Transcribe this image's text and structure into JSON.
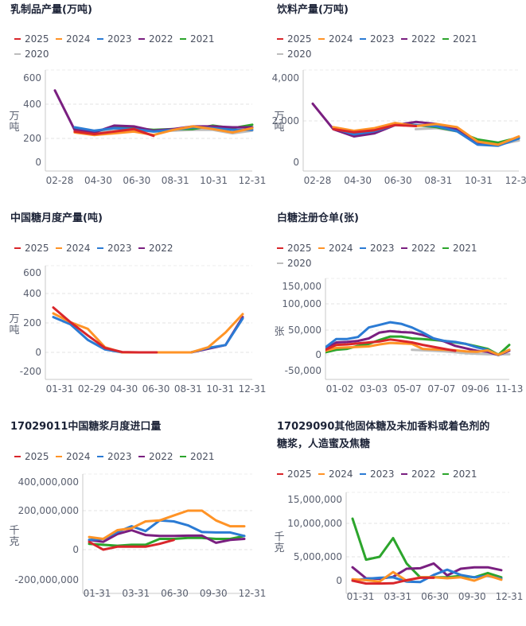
{
  "colors": {
    "2025": "#d9262b",
    "2024": "#ff9326",
    "2023": "#2b7bd4",
    "2022": "#7a1f80",
    "2021": "#2ca52c",
    "2020": "#bdbdbd"
  },
  "chart_data": [
    {
      "id": "dairy",
      "type": "line",
      "title": "乳制品产量(万吨)",
      "ylabel": "万吨",
      "xlabel": "",
      "legend": [
        "2025",
        "2024",
        "2023",
        "2022",
        "2021",
        "2020"
      ],
      "legend_position": "top-left",
      "yticks": [
        0,
        200,
        400,
        600
      ],
      "ylim": [
        -50,
        650
      ],
      "grid": true,
      "xtick_labels": [
        "02-28",
        "04-30",
        "06-30",
        "08-31",
        "10-31",
        "12-31"
      ],
      "x": [
        "02-28",
        "03-31",
        "04-30",
        "05-31",
        "06-30",
        "07-31",
        "08-31",
        "09-30",
        "10-31",
        "11-30",
        "12-31"
      ],
      "series": [
        {
          "name": "2025",
          "values": [
            null,
            240,
            225,
            240,
            255,
            215,
            null,
            null,
            null,
            null,
            null
          ]
        },
        {
          "name": "2024",
          "values": [
            null,
            235,
            220,
            230,
            240,
            220,
            250,
            270,
            255,
            235,
            260
          ]
        },
        {
          "name": "2023",
          "values": [
            null,
            265,
            245,
            260,
            255,
            240,
            250,
            265,
            260,
            250,
            250
          ]
        },
        {
          "name": "2022",
          "values": [
            505,
            250,
            235,
            275,
            270,
            245,
            255,
            270,
            270,
            265,
            265
          ]
        },
        {
          "name": "2021",
          "values": [
            null,
            255,
            240,
            265,
            260,
            250,
            255,
            255,
            275,
            260,
            280
          ]
        },
        {
          "name": "2020",
          "values": [
            null,
            250,
            235,
            255,
            250,
            240,
            245,
            250,
            250,
            230,
            245
          ]
        }
      ]
    },
    {
      "id": "beverage",
      "type": "line",
      "title": "饮料产量(万吨)",
      "ylabel": "万吨",
      "xlabel": "",
      "legend": [
        "2025",
        "2024",
        "2023",
        "2022",
        "2021",
        "2020"
      ],
      "legend_position": "top-left",
      "yticks": [
        0,
        2000,
        4000
      ],
      "ylim": [
        -400,
        4200
      ],
      "grid": true,
      "xtick_labels": [
        "02-28",
        "04-30",
        "06-30",
        "08-31",
        "10-31",
        "12-31"
      ],
      "x": [
        "02-28",
        "03-31",
        "04-30",
        "05-31",
        "06-30",
        "07-31",
        "08-31",
        "09-30",
        "10-31",
        "11-30",
        "12-31"
      ],
      "series": [
        {
          "name": "2025",
          "values": [
            null,
            1600,
            1450,
            1550,
            1800,
            1750,
            null,
            null,
            null,
            null,
            null
          ]
        },
        {
          "name": "2024",
          "values": [
            null,
            1700,
            1520,
            1650,
            1900,
            1750,
            1850,
            1700,
            1000,
            850,
            1250
          ]
        },
        {
          "name": "2023",
          "values": [
            null,
            1650,
            1350,
            1500,
            1800,
            1800,
            1750,
            1500,
            850,
            800,
            1150
          ]
        },
        {
          "name": "2022",
          "values": [
            2800,
            1600,
            1250,
            1400,
            1800,
            1950,
            1850,
            1600,
            900,
            850,
            1200
          ]
        },
        {
          "name": "2021",
          "values": [
            null,
            1650,
            1400,
            1550,
            1850,
            1800,
            1700,
            1500,
            1100,
            950,
            1200
          ]
        },
        {
          "name": "2020",
          "values": [
            null,
            null,
            null,
            null,
            null,
            1600,
            1650,
            1500,
            950,
            850,
            1050
          ]
        }
      ]
    },
    {
      "id": "sugar-output",
      "type": "line",
      "title": "中国糖月度产量(吨)",
      "ylabel": "万吨",
      "xlabel": "",
      "legend": [
        "2025",
        "2024",
        "2023",
        "2022"
      ],
      "legend_position": "top-left",
      "yticks": [
        -200,
        0,
        200,
        400,
        600
      ],
      "ylim": [
        -270,
        640
      ],
      "grid": true,
      "xtick_labels": [
        "01-31",
        "02-29",
        "04-30",
        "06-30",
        "08-31",
        "10-31",
        "12-31"
      ],
      "x": [
        "01-31",
        "02-29",
        "03-31",
        "04-30",
        "05-31",
        "06-30",
        "07-31",
        "08-31",
        "09-30",
        "10-31",
        "11-30",
        "12-31"
      ],
      "series": [
        {
          "name": "2025",
          "values": [
            305,
            205,
            115,
            30,
            2,
            0,
            0,
            null,
            null,
            null,
            null,
            null
          ]
        },
        {
          "name": "2024",
          "values": [
            265,
            205,
            160,
            35,
            0,
            0,
            0,
            0,
            0,
            35,
            135,
            260
          ]
        },
        {
          "name": "2023",
          "values": [
            240,
            190,
            85,
            20,
            0,
            0,
            0,
            0,
            0,
            30,
            50,
            230
          ]
        },
        {
          "name": "2022",
          "values": [
            null,
            null,
            null,
            null,
            null,
            null,
            null,
            null,
            0,
            25,
            50,
            240
          ]
        }
      ]
    },
    {
      "id": "warehouse-receipts",
      "type": "line",
      "title": "白糖注册仓单(张)",
      "ylabel": "张",
      "xlabel": "",
      "legend": [
        "2025",
        "2024",
        "2023",
        "2022",
        "2021",
        "2020"
      ],
      "legend_position": "top-left",
      "yticks": [
        -50000,
        0,
        50000,
        100000,
        150000
      ],
      "ylim": [
        -70000,
        160000
      ],
      "grid": true,
      "xtick_labels": [
        "01-02",
        "03-03",
        "05-07",
        "07-07",
        "09-06",
        "11-13"
      ],
      "x": [
        "01-02",
        "01-20",
        "02-10",
        "03-03",
        "03-25",
        "04-15",
        "05-07",
        "05-28",
        "06-18",
        "07-07",
        "07-28",
        "08-18",
        "09-06",
        "09-28",
        "10-20",
        "11-13",
        "12-05",
        "12-31"
      ],
      "series": [
        {
          "name": "2025",
          "values": [
            10000,
            20000,
            21000,
            23000,
            25000,
            27000,
            31000,
            28000,
            25000,
            20000,
            16000,
            12000,
            8000,
            null,
            null,
            null,
            null,
            null
          ]
        },
        {
          "name": "2024",
          "values": [
            8000,
            14000,
            15000,
            16000,
            17000,
            21000,
            24000,
            23000,
            22000,
            12000,
            11000,
            10000,
            9000,
            7000,
            6000,
            9000,
            0,
            10000
          ]
        },
        {
          "name": "2023",
          "values": [
            15000,
            32000,
            32000,
            36000,
            55000,
            60000,
            65000,
            62000,
            55000,
            45000,
            33000,
            28000,
            26000,
            22000,
            15000,
            10000,
            -1000,
            10000
          ]
        },
        {
          "name": "2022",
          "values": [
            12000,
            25000,
            26000,
            28000,
            33000,
            45000,
            48000,
            46000,
            45000,
            40000,
            33000,
            27000,
            18000,
            13000,
            8000,
            6000,
            -1000,
            8000
          ]
        },
        {
          "name": "2021",
          "values": [
            5000,
            10000,
            12000,
            18000,
            22000,
            30000,
            37000,
            37000,
            33000,
            32000,
            30000,
            28000,
            25000,
            22000,
            17000,
            12000,
            0,
            20000
          ]
        },
        {
          "name": "2020",
          "values": [
            null,
            null,
            null,
            null,
            null,
            null,
            null,
            null,
            10000,
            9000,
            8000,
            7000,
            5000,
            3000,
            2000,
            1000,
            1000,
            1000
          ]
        }
      ]
    },
    {
      "id": "syrup-import-011",
      "type": "line",
      "title": "17029011中国糖浆月度进口量",
      "ylabel": "千克",
      "xlabel": "",
      "legend": [
        "2025",
        "2024",
        "2023",
        "2022",
        "2021"
      ],
      "legend_position": "top-left",
      "yticks": [
        -200000000,
        0,
        200000000,
        400000000
      ],
      "ylim": [
        -260000000,
        420000000
      ],
      "grid": true,
      "xtick_labels": [
        "01-31",
        "03-31",
        "06-30",
        "09-30",
        "12-31"
      ],
      "x": [
        "01-31",
        "02-28",
        "03-31",
        "04-30",
        "05-31",
        "06-30",
        "07-31",
        "08-31",
        "09-30",
        "10-31",
        "11-30",
        "12-31"
      ],
      "series": [
        {
          "name": "2025",
          "values": [
            40000000,
            0,
            15000000,
            15000000,
            15000000,
            30000000,
            50000000,
            null,
            null,
            null,
            null,
            null
          ]
        },
        {
          "name": "2024",
          "values": [
            65000000,
            55000000,
            100000000,
            110000000,
            145000000,
            150000000,
            175000000,
            200000000,
            200000000,
            150000000,
            120000000,
            120000000
          ]
        },
        {
          "name": "2023",
          "values": [
            50000000,
            55000000,
            90000000,
            120000000,
            95000000,
            150000000,
            145000000,
            125000000,
            90000000,
            88000000,
            88000000,
            70000000
          ]
        },
        {
          "name": "2022",
          "values": [
            50000000,
            40000000,
            80000000,
            100000000,
            75000000,
            70000000,
            70000000,
            72000000,
            72000000,
            35000000,
            50000000,
            55000000
          ]
        },
        {
          "name": "2021",
          "values": [
            30000000,
            25000000,
            20000000,
            25000000,
            25000000,
            55000000,
            55000000,
            60000000,
            60000000,
            55000000,
            55000000,
            70000000
          ]
        }
      ]
    },
    {
      "id": "syrup-import-090",
      "type": "line",
      "title": "17029090其他固体糖及未加香料或着色剂的糖浆，人造蜜及焦糖",
      "title_lines": [
        "17029090其他固体糖及未加香料或着色剂的",
        "糖浆，人造蜜及焦糖"
      ],
      "ylabel": "千克",
      "xlabel": "",
      "legend": [
        "2025",
        "2024",
        "2023",
        "2022",
        "2021"
      ],
      "legend_position": "top-left",
      "yticks": [
        0,
        5000000,
        10000000,
        15000000
      ],
      "ylim": [
        -1500000,
        16000000
      ],
      "grid": true,
      "xtick_labels": [
        "01-31",
        "03-31",
        "06-30",
        "09-30",
        "12-31"
      ],
      "x": [
        "01-31",
        "02-28",
        "03-31",
        "04-30",
        "05-31",
        "06-30",
        "07-31",
        "08-31",
        "09-30",
        "10-31",
        "11-30",
        "12-31"
      ],
      "series": [
        {
          "name": "2025",
          "values": [
            0,
            -600000,
            -600000,
            -550000,
            100000,
            600000,
            600000,
            null,
            null,
            null,
            null,
            null
          ]
        },
        {
          "name": "2024",
          "values": [
            300000,
            100000,
            -200000,
            1800000,
            0,
            700000,
            700000,
            500000,
            700000,
            0,
            1100000,
            200000
          ]
        },
        {
          "name": "2023",
          "values": [
            0,
            400000,
            600000,
            700000,
            -200000,
            -300000,
            1200000,
            2300000,
            1200000,
            700000,
            1000000,
            400000
          ]
        },
        {
          "name": "2022",
          "values": [
            2800000,
            500000,
            400000,
            800000,
            2500000,
            2600000,
            3600000,
            1100000,
            2500000,
            2800000,
            2800000,
            2200000
          ]
        },
        {
          "name": "2021",
          "values": [
            11000000,
            4400000,
            5000000,
            7800000,
            3600000,
            700000,
            700000,
            700000,
            1000000,
            700000,
            1600000,
            700000
          ]
        }
      ]
    }
  ]
}
